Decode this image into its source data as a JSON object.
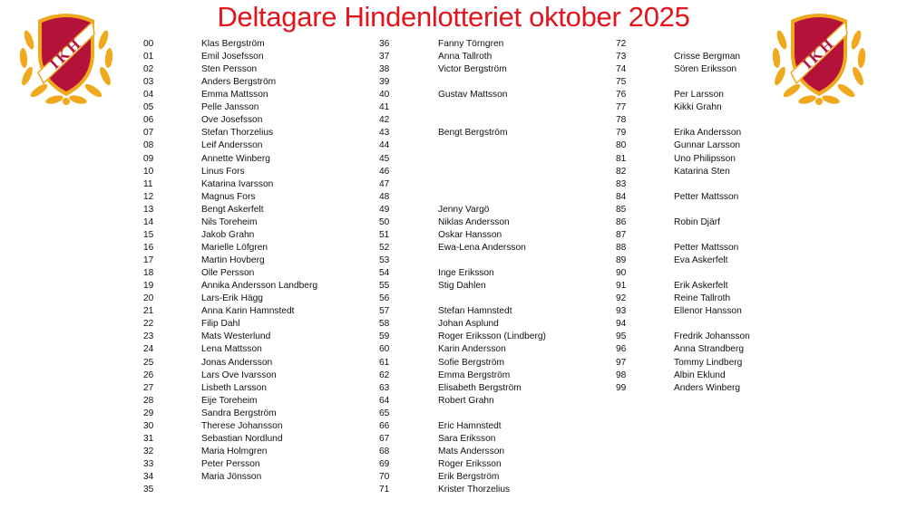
{
  "title": "Deltagare Hindenlotteriet oktober 2025",
  "logo": {
    "text": "IKH",
    "colors": {
      "shield": "#b5123a",
      "gold": "#f0a81c",
      "band": "#ffffff"
    }
  },
  "title_color": "#e5141c",
  "columns": [
    [
      [
        "00",
        "Klas Bergström"
      ],
      [
        "01",
        "Emil Josefsson"
      ],
      [
        "02",
        "Sten Persson"
      ],
      [
        "03",
        "Anders Bergström"
      ],
      [
        "04",
        "Emma Mattsson"
      ],
      [
        "05",
        "Pelle Jansson"
      ],
      [
        "06",
        "Ove Josefsson"
      ],
      [
        "07",
        "Stefan Thorzelius"
      ],
      [
        "08",
        "Leif Andersson"
      ],
      [
        "09",
        "Annette Winberg"
      ],
      [
        "10",
        "Linus Fors"
      ],
      [
        "11",
        "Katarina Ivarsson"
      ],
      [
        "12",
        "Magnus Fors"
      ],
      [
        "13",
        "Bengt Askerfelt"
      ],
      [
        "14",
        "Nils Toreheim"
      ],
      [
        "15",
        "Jakob Grahn"
      ],
      [
        "16",
        "Marielle Löfgren"
      ],
      [
        "17",
        "Martin Hovberg"
      ],
      [
        "18",
        "Olle Persson"
      ],
      [
        "19",
        "Annika Andersson Landberg"
      ],
      [
        "20",
        "Lars-Erik Hägg"
      ],
      [
        "21",
        "Anna Karin Hamnstedt"
      ],
      [
        "22",
        "Filip Dahl"
      ],
      [
        "23",
        "Mats Westerlund"
      ],
      [
        "24",
        "Lena Mattsson"
      ],
      [
        "25",
        "Jonas Andersson"
      ],
      [
        "26",
        "Lars Ove Ivarsson"
      ],
      [
        "27",
        "Lisbeth Larsson"
      ],
      [
        "28",
        "Eije Toreheim"
      ],
      [
        "29",
        "Sandra Bergström"
      ],
      [
        "30",
        "Therese Johansson"
      ],
      [
        "31",
        "Sebastian Nordlund"
      ],
      [
        "32",
        "Maria Holmgren"
      ],
      [
        "33",
        "Peter Persson"
      ],
      [
        "34",
        "Maria Jönsson"
      ],
      [
        "35",
        ""
      ]
    ],
    [
      [
        "36",
        "Fanny Törngren"
      ],
      [
        "37",
        "Anna Tallroth"
      ],
      [
        "38",
        "Victor Bergström"
      ],
      [
        "39",
        ""
      ],
      [
        "40",
        "Gustav Mattsson"
      ],
      [
        "41",
        ""
      ],
      [
        "42",
        ""
      ],
      [
        "43",
        "Bengt Bergström"
      ],
      [
        "44",
        ""
      ],
      [
        "45",
        ""
      ],
      [
        "46",
        ""
      ],
      [
        "47",
        ""
      ],
      [
        "48",
        ""
      ],
      [
        "49",
        "Jenny Vargö"
      ],
      [
        "50",
        "Niklas Andersson"
      ],
      [
        "51",
        "Oskar Hansson"
      ],
      [
        "52",
        "Ewa-Lena Andersson"
      ],
      [
        "53",
        ""
      ],
      [
        "54",
        "Inge Eriksson"
      ],
      [
        "55",
        "Stig Dahlen"
      ],
      [
        "56",
        ""
      ],
      [
        "57",
        "Stefan Hamnstedt"
      ],
      [
        "58",
        "Johan Asplund"
      ],
      [
        "59",
        "Roger Eriksson (Lindberg)"
      ],
      [
        "60",
        "Karin Andersson"
      ],
      [
        "61",
        "Sofie Bergström"
      ],
      [
        "62",
        "Emma Bergström"
      ],
      [
        "63",
        "Elisabeth Bergström"
      ],
      [
        "64",
        "Robert Grahn"
      ],
      [
        "65",
        ""
      ],
      [
        "66",
        "Eric Hamnstedt"
      ],
      [
        "67",
        "Sara Eriksson"
      ],
      [
        "68",
        "Mats Andersson"
      ],
      [
        "69",
        "Roger Eriksson"
      ],
      [
        "70",
        "Erik Bergström"
      ],
      [
        "71",
        "Krister Thorzelius"
      ]
    ],
    [
      [
        "72",
        ""
      ],
      [
        "73",
        "Crisse Bergman"
      ],
      [
        "74",
        "Sören Eriksson"
      ],
      [
        "75",
        ""
      ],
      [
        "76",
        "Per Larsson"
      ],
      [
        "77",
        "Kikki Grahn"
      ],
      [
        "78",
        ""
      ],
      [
        "79",
        "Erika Andersson"
      ],
      [
        "80",
        "Gunnar Larsson"
      ],
      [
        "81",
        "Uno Philipsson"
      ],
      [
        "82",
        "Katarina Sten"
      ],
      [
        "83",
        ""
      ],
      [
        "84",
        "Petter Mattsson"
      ],
      [
        "85",
        ""
      ],
      [
        "86",
        "Robin Djärf"
      ],
      [
        "87",
        ""
      ],
      [
        "88",
        "Petter Mattsson"
      ],
      [
        "89",
        "Eva Askerfelt"
      ],
      [
        "90",
        ""
      ],
      [
        "91",
        "Erik Askerfelt"
      ],
      [
        "92",
        "Reine Tallroth"
      ],
      [
        "93",
        "Ellenor Hansson"
      ],
      [
        "94",
        ""
      ],
      [
        "95",
        "Fredrik Johansson"
      ],
      [
        "96",
        "Anna Strandberg"
      ],
      [
        "97",
        "Tommy Lindberg"
      ],
      [
        "98",
        "Albin Eklund"
      ],
      [
        "99",
        "Anders Winberg"
      ]
    ]
  ]
}
